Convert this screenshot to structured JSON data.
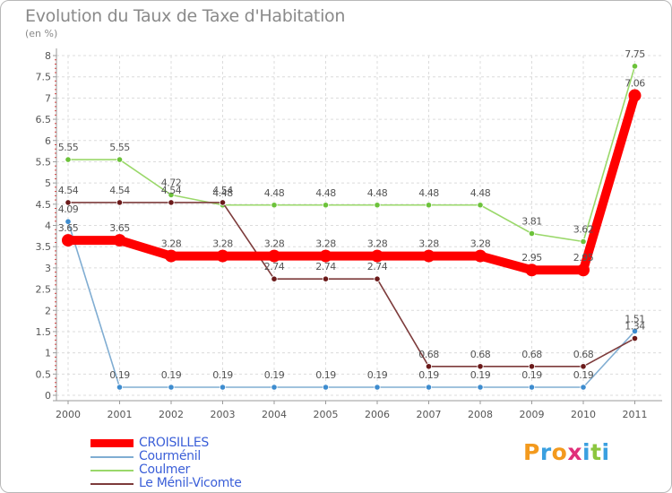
{
  "chart_data": {
    "type": "line",
    "title": "Evolution du Taux de Taxe d'Habitation",
    "subtitle": "(en %)",
    "x": [
      "2000",
      "2001",
      "2002",
      "2003",
      "2004",
      "2005",
      "2006",
      "2007",
      "2008",
      "2009",
      "2010",
      "2011"
    ],
    "yticks": [
      "0",
      "0.5",
      "1",
      "1.5",
      "2",
      "2.5",
      "3",
      "3.5",
      "4",
      "4.5",
      "5",
      "5.5",
      "6",
      "6.5",
      "7",
      "7.5",
      "8"
    ],
    "ylim": [
      0,
      8
    ],
    "grid": true,
    "legend_position": "bottom-left",
    "series": [
      {
        "name": "CROISILLES",
        "color": "#ff0000",
        "marker_color": "#ff0000",
        "values": [
          3.65,
          3.65,
          3.28,
          3.28,
          3.28,
          3.28,
          3.28,
          3.28,
          3.28,
          2.95,
          2.95,
          7.06
        ],
        "labels": [
          "3.65",
          "3.65",
          "3.28",
          "3.28",
          "3.28",
          "3.28",
          "3.28",
          "3.28",
          "3.28",
          "2.95",
          "2.95",
          "7.06"
        ]
      },
      {
        "name": "Courménil",
        "color": "#80add2",
        "marker_color": "#3d8ccf",
        "values": [
          4.09,
          0.19,
          0.19,
          0.19,
          0.19,
          0.19,
          0.19,
          0.19,
          0.19,
          0.19,
          0.19,
          1.51
        ],
        "labels": [
          "4.09",
          "0.19",
          "0.19",
          "0.19",
          "0.19",
          "0.19",
          "0.19",
          "0.19",
          "0.19",
          "0.19",
          "0.19",
          "1.51"
        ]
      },
      {
        "name": "Coulmer",
        "color": "#9ad86a",
        "marker_color": "#6cc23a",
        "values": [
          5.55,
          5.55,
          4.72,
          4.48,
          4.48,
          4.48,
          4.48,
          4.48,
          4.48,
          3.81,
          3.62,
          7.75
        ],
        "labels": [
          "5.55",
          "5.55",
          "4.72",
          "4.48",
          "4.48",
          "4.48",
          "4.48",
          "4.48",
          "4.48",
          "3.81",
          "3.62",
          "7.75"
        ]
      },
      {
        "name": "Le Ménil-Vicomte",
        "color": "#7d3b3b",
        "marker_color": "#6b1a1a",
        "values": [
          4.54,
          4.54,
          4.54,
          4.54,
          2.74,
          2.74,
          2.74,
          0.68,
          0.68,
          0.68,
          0.68,
          1.34
        ],
        "labels": [
          "4.54",
          "4.54",
          "4.54",
          "4.54",
          "2.74",
          "2.74",
          "2.74",
          "0.68",
          "0.68",
          "0.68",
          "0.68",
          "1.34"
        ]
      }
    ]
  },
  "legend_text_color": "#3b5fd8",
  "logo": {
    "text": "Proxiti",
    "letters": [
      {
        "ch": "P",
        "color": "#f39a1e"
      },
      {
        "ch": "r",
        "color": "#3aa0e0"
      },
      {
        "ch": "o",
        "color": "#f39a1e"
      },
      {
        "ch": "x",
        "color": "#e0307a"
      },
      {
        "ch": "i",
        "color": "#3aa0e0"
      },
      {
        "ch": "t",
        "color": "#8cc63f"
      },
      {
        "ch": "i",
        "color": "#3aa0e0"
      }
    ]
  }
}
